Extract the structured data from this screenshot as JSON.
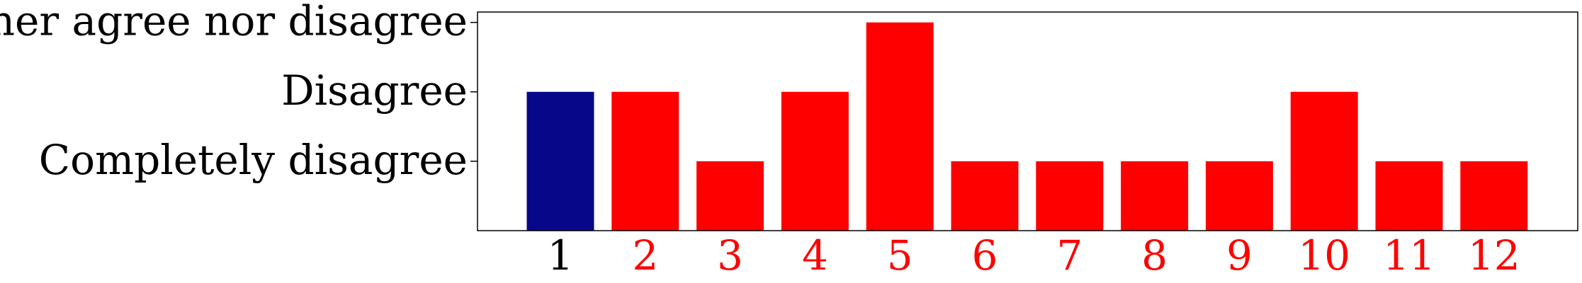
{
  "chart_data": {
    "type": "bar",
    "categories": [
      "1",
      "2",
      "3",
      "4",
      "5",
      "6",
      "7",
      "8",
      "9",
      "10",
      "11",
      "12"
    ],
    "values": [
      2,
      2,
      1,
      2,
      3,
      1,
      1,
      1,
      1,
      2,
      1,
      1
    ],
    "y_levels": [
      {
        "value": 1,
        "label": "Completely disagree"
      },
      {
        "value": 2,
        "label": "Disagree"
      },
      {
        "value": 3,
        "label": "Neither agree nor disagree"
      }
    ],
    "ylim": [
      0,
      3.15
    ],
    "bar_colors": [
      "#07078a",
      "#ff0000",
      "#ff0000",
      "#ff0000",
      "#ff0000",
      "#ff0000",
      "#ff0000",
      "#ff0000",
      "#ff0000",
      "#ff0000",
      "#ff0000",
      "#ff0000"
    ],
    "xtick_colors": [
      "#000000",
      "#ff0000",
      "#ff0000",
      "#ff0000",
      "#ff0000",
      "#ff0000",
      "#ff0000",
      "#ff0000",
      "#ff0000",
      "#ff0000",
      "#ff0000",
      "#ff0000"
    ],
    "grid": false,
    "legend": "none"
  }
}
